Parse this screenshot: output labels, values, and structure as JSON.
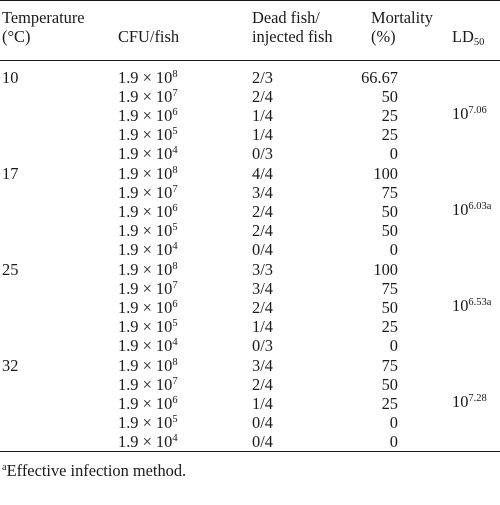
{
  "table": {
    "headers": {
      "temperature": [
        "Temperature",
        "(°C)"
      ],
      "cfu": "CFU/fish",
      "dead": [
        "Dead fish/",
        "injected fish"
      ],
      "mortality": [
        "Mortality",
        "(%)"
      ],
      "ld": {
        "base": "LD",
        "sub": "50"
      }
    },
    "groups": [
      {
        "temperature": "10",
        "ld50": {
          "base": "10",
          "exp": "7.06"
        },
        "rows": [
          {
            "cfu_base": "1.9 × 10",
            "cfu_exp": "8",
            "dead": "2/3",
            "mortality": "66.67"
          },
          {
            "cfu_base": "1.9 × 10",
            "cfu_exp": "7",
            "dead": "2/4",
            "mortality": "50"
          },
          {
            "cfu_base": "1.9 × 10",
            "cfu_exp": "6",
            "dead": "1/4",
            "mortality": "25"
          },
          {
            "cfu_base": "1.9 × 10",
            "cfu_exp": "5",
            "dead": "1/4",
            "mortality": "25"
          },
          {
            "cfu_base": "1.9 × 10",
            "cfu_exp": "4",
            "dead": "0/3",
            "mortality": "0"
          }
        ]
      },
      {
        "temperature": "17",
        "ld50": {
          "base": "10",
          "exp": "6.03a"
        },
        "rows": [
          {
            "cfu_base": "1.9 × 10",
            "cfu_exp": "8",
            "dead": "4/4",
            "mortality": "100"
          },
          {
            "cfu_base": "1.9 × 10",
            "cfu_exp": "7",
            "dead": "3/4",
            "mortality": "75"
          },
          {
            "cfu_base": "1.9 × 10",
            "cfu_exp": "6",
            "dead": "2/4",
            "mortality": "50"
          },
          {
            "cfu_base": "1.9 × 10",
            "cfu_exp": "5",
            "dead": "2/4",
            "mortality": "50"
          },
          {
            "cfu_base": "1.9 × 10",
            "cfu_exp": "4",
            "dead": "0/4",
            "mortality": "0"
          }
        ]
      },
      {
        "temperature": "25",
        "ld50": {
          "base": "10",
          "exp": "6.53a"
        },
        "rows": [
          {
            "cfu_base": "1.9 × 10",
            "cfu_exp": "8",
            "dead": "3/3",
            "mortality": "100"
          },
          {
            "cfu_base": "1.9 × 10",
            "cfu_exp": "7",
            "dead": "3/4",
            "mortality": "75"
          },
          {
            "cfu_base": "1.9 × 10",
            "cfu_exp": "6",
            "dead": "2/4",
            "mortality": "50"
          },
          {
            "cfu_base": "1.9 × 10",
            "cfu_exp": "5",
            "dead": "1/4",
            "mortality": "25"
          },
          {
            "cfu_base": "1.9 × 10",
            "cfu_exp": "4",
            "dead": "0/3",
            "mortality": "0"
          }
        ]
      },
      {
        "temperature": "32",
        "ld50": {
          "base": "10",
          "exp": "7.28"
        },
        "rows": [
          {
            "cfu_base": "1.9 × 10",
            "cfu_exp": "8",
            "dead": "3/4",
            "mortality": "75"
          },
          {
            "cfu_base": "1.9 × 10",
            "cfu_exp": "7",
            "dead": "2/4",
            "mortality": "50"
          },
          {
            "cfu_base": "1.9 × 10",
            "cfu_exp": "6",
            "dead": "1/4",
            "mortality": "25"
          },
          {
            "cfu_base": "1.9 × 10",
            "cfu_exp": "5",
            "dead": "0/4",
            "mortality": "0"
          },
          {
            "cfu_base": "1.9 × 10",
            "cfu_exp": "4",
            "dead": "0/4",
            "mortality": "0"
          }
        ]
      }
    ],
    "footnote": {
      "mark": "a",
      "text": "Effective infection method."
    }
  }
}
